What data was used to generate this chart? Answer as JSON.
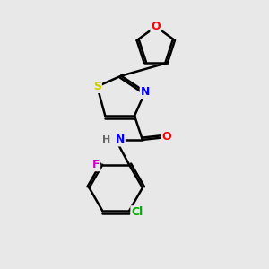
{
  "bg_color": "#e8e8e8",
  "bond_color": "#000000",
  "bond_width": 1.8,
  "dbo": 0.08,
  "atom_colors": {
    "O": "#ff0000",
    "N": "#0000ff",
    "S": "#cccc00",
    "Cl": "#00aa00",
    "F": "#cc00cc",
    "H": "#666666"
  },
  "font_size": 9,
  "fig_size": [
    3.0,
    3.0
  ],
  "dpi": 100,
  "xlim": [
    0,
    10
  ],
  "ylim": [
    0,
    10
  ]
}
